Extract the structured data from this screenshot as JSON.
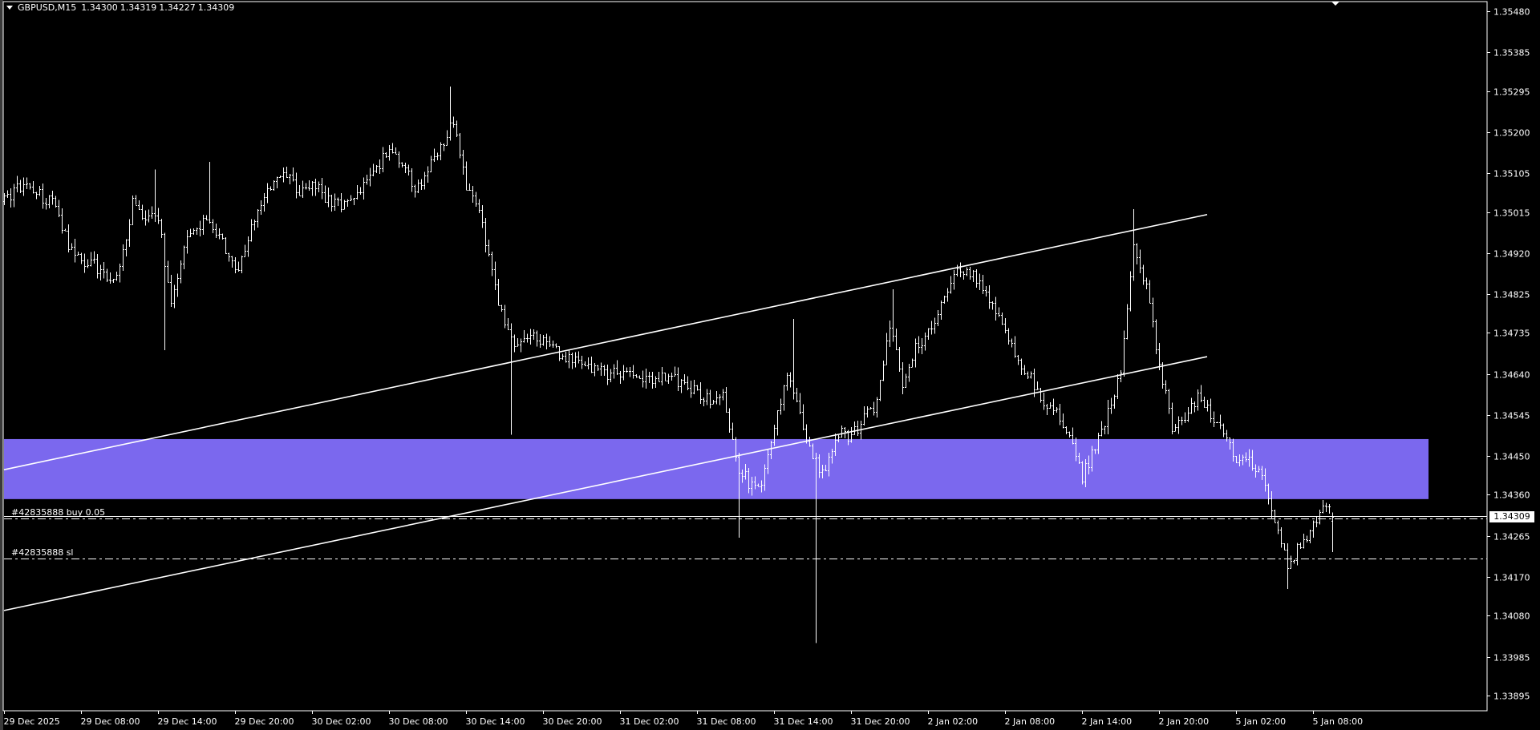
{
  "header": {
    "symbol_timeframe": "GBPUSD,M15",
    "open": "1.34300",
    "high": "1.34319",
    "low": "1.34227",
    "close": "1.34309",
    "menu_icon": "triangle-down-icon"
  },
  "colors": {
    "background": "#000000",
    "foreground": "#ffffff",
    "bars": "#ffffff",
    "zone_rectangle": "#7b68ee",
    "bid_label_bg": "#ffffff"
  },
  "chart_data": {
    "type": "ohlc-bar",
    "symbol": "GBPUSD",
    "timeframe": "M15",
    "ylim": [
      1.3386,
      1.35505
    ],
    "grid": false,
    "y_ticks": [
      "1.35480",
      "1.35385",
      "1.35295",
      "1.35200",
      "1.35105",
      "1.35015",
      "1.34920",
      "1.34825",
      "1.34735",
      "1.34640",
      "1.34545",
      "1.34450",
      "1.34360",
      "1.34265",
      "1.34170",
      "1.34080",
      "1.33985",
      "1.33895"
    ],
    "x_ticks": [
      "29 Dec 2025",
      "29 Dec 08:00",
      "29 Dec 14:00",
      "29 Dec 20:00",
      "30 Dec 02:00",
      "30 Dec 08:00",
      "30 Dec 14:00",
      "30 Dec 20:00",
      "31 Dec 02:00",
      "31 Dec 08:00",
      "31 Dec 14:00",
      "31 Dec 20:00",
      "2 Jan 02:00",
      "2 Jan 08:00",
      "2 Jan 14:00",
      "2 Jan 20:00",
      "5 Jan 02:00",
      "5 Jan 08:00"
    ],
    "hourly_closes": [
      {
        "from": "29 Dec 02:00",
        "closes": [
          1.3504,
          1.3507,
          1.35074,
          1.35051,
          1.35031,
          1.34938
        ]
      },
      {
        "from": "29 Dec 08:00",
        "closes": [
          1.34901,
          1.34897,
          1.34858,
          1.34881,
          1.3504,
          1.34995
        ]
      },
      {
        "from": "29 Dec 14:00",
        "closes": [
          1.35006,
          1.34801,
          1.34938,
          1.34976,
          1.35001,
          1.34949
        ]
      },
      {
        "from": "29 Dec 20:00",
        "closes": [
          1.3487,
          1.34961,
          1.35033,
          1.35086,
          1.35097,
          1.35063
        ]
      },
      {
        "from": "30 Dec 02:00",
        "closes": [
          1.35079,
          1.35051,
          1.35033,
          1.35045,
          1.35074,
          1.35115
        ]
      },
      {
        "from": "30 Dec 08:00",
        "closes": [
          1.35165,
          1.35131,
          1.35063,
          1.35115,
          1.35165,
          1.35222
        ]
      },
      {
        "from": "30 Dec 14:00",
        "closes": [
          1.35074,
          1.35017,
          1.3487,
          1.34756,
          1.34699,
          1.34727
        ]
      },
      {
        "from": "30 Dec 20:00",
        "closes": [
          1.34715,
          1.34692,
          1.34674,
          1.34663,
          1.34654,
          1.34642
        ]
      },
      {
        "from": "31 Dec 02:00",
        "closes": [
          1.34647,
          1.34631,
          1.34631,
          1.34631,
          1.34631,
          1.34615
        ]
      },
      {
        "from": "31 Dec 08:00",
        "closes": [
          1.34597,
          1.34579,
          1.34586,
          1.34438,
          1.34388,
          1.34381
        ]
      },
      {
        "from": "31 Dec 14:00",
        "closes": [
          1.34529,
          1.34631,
          1.34551,
          1.34438,
          1.34415,
          1.34506
        ]
      },
      {
        "from": "31 Dec 20:00",
        "closes": [
          1.34495,
          1.3454,
          1.34574,
          1.34756,
          1.3462,
          1.34699
        ]
      },
      {
        "from": "2 Jan 02:00",
        "closes": [
          1.34738,
          1.34801,
          1.3487,
          1.34888,
          1.34847,
          1.34806
        ]
      },
      {
        "from": "2 Jan 08:00",
        "closes": [
          1.34733,
          1.34665,
          1.34631,
          1.34574,
          1.34551,
          1.34506
        ]
      },
      {
        "from": "2 Jan 14:00",
        "closes": [
          1.34404,
          1.34472,
          1.34551,
          1.34642,
          1.34938,
          1.34836
        ]
      },
      {
        "from": "2 Jan 20:00",
        "closes": [
          1.34665,
          1.34517,
          1.34533,
          1.34586,
          1.34551,
          1.34506
        ]
      },
      {
        "from": "5 Jan 02:00",
        "closes": [
          1.34449,
          1.34438,
          1.34415,
          1.3429,
          1.34199,
          1.34245
        ]
      },
      {
        "from": "5 Jan 08:00",
        "closes": [
          1.3429,
          1.34336
        ]
      }
    ],
    "extremes": [
      {
        "time": "29 Dec 13:45",
        "high": 1.35113
      },
      {
        "time": "29 Dec 14:30",
        "low": 1.34695
      },
      {
        "time": "29 Dec 18:00",
        "high": 1.35131
      },
      {
        "time": "30 Dec 12:45",
        "high": 1.35306
      },
      {
        "time": "30 Dec 17:30",
        "low": 1.34499
      },
      {
        "time": "31 Dec 11:15",
        "low": 1.34261
      },
      {
        "time": "31 Dec 15:30",
        "high": 1.34767
      },
      {
        "time": "31 Dec 17:15",
        "low": 1.34017
      },
      {
        "time": "31 Dec 23:15",
        "high": 1.34836
      },
      {
        "time": "2 Jan 18:00",
        "high": 1.35022
      },
      {
        "time": "5 Jan 06:00",
        "low": 1.34142
      }
    ],
    "last_bar": {
      "open": 1.343,
      "high": 1.34319,
      "low": 1.34227,
      "close": 1.34309
    },
    "trend_lines": [
      {
        "from": {
          "time": "29 Dec 02:00",
          "price": 1.34418
        },
        "to": {
          "time": "2 Jan 23:45",
          "price": 1.35009
        }
      },
      {
        "from": {
          "time": "29 Dec 02:00",
          "price": 1.34092
        },
        "to": {
          "time": "2 Jan 23:45",
          "price": 1.3468
        }
      }
    ],
    "rectangle": {
      "from": "29 Dec 02:00",
      "to": "5 Jan 17:00",
      "price_top": 1.34489,
      "price_bottom": 1.3435
    },
    "bid_price": 1.34309,
    "orders": [
      {
        "label": "#42835888 buy 0.05",
        "price": 1.34305
      },
      {
        "label": "#42835888 sl",
        "price": 1.34212
      }
    ]
  },
  "bid_label": "1.34309"
}
